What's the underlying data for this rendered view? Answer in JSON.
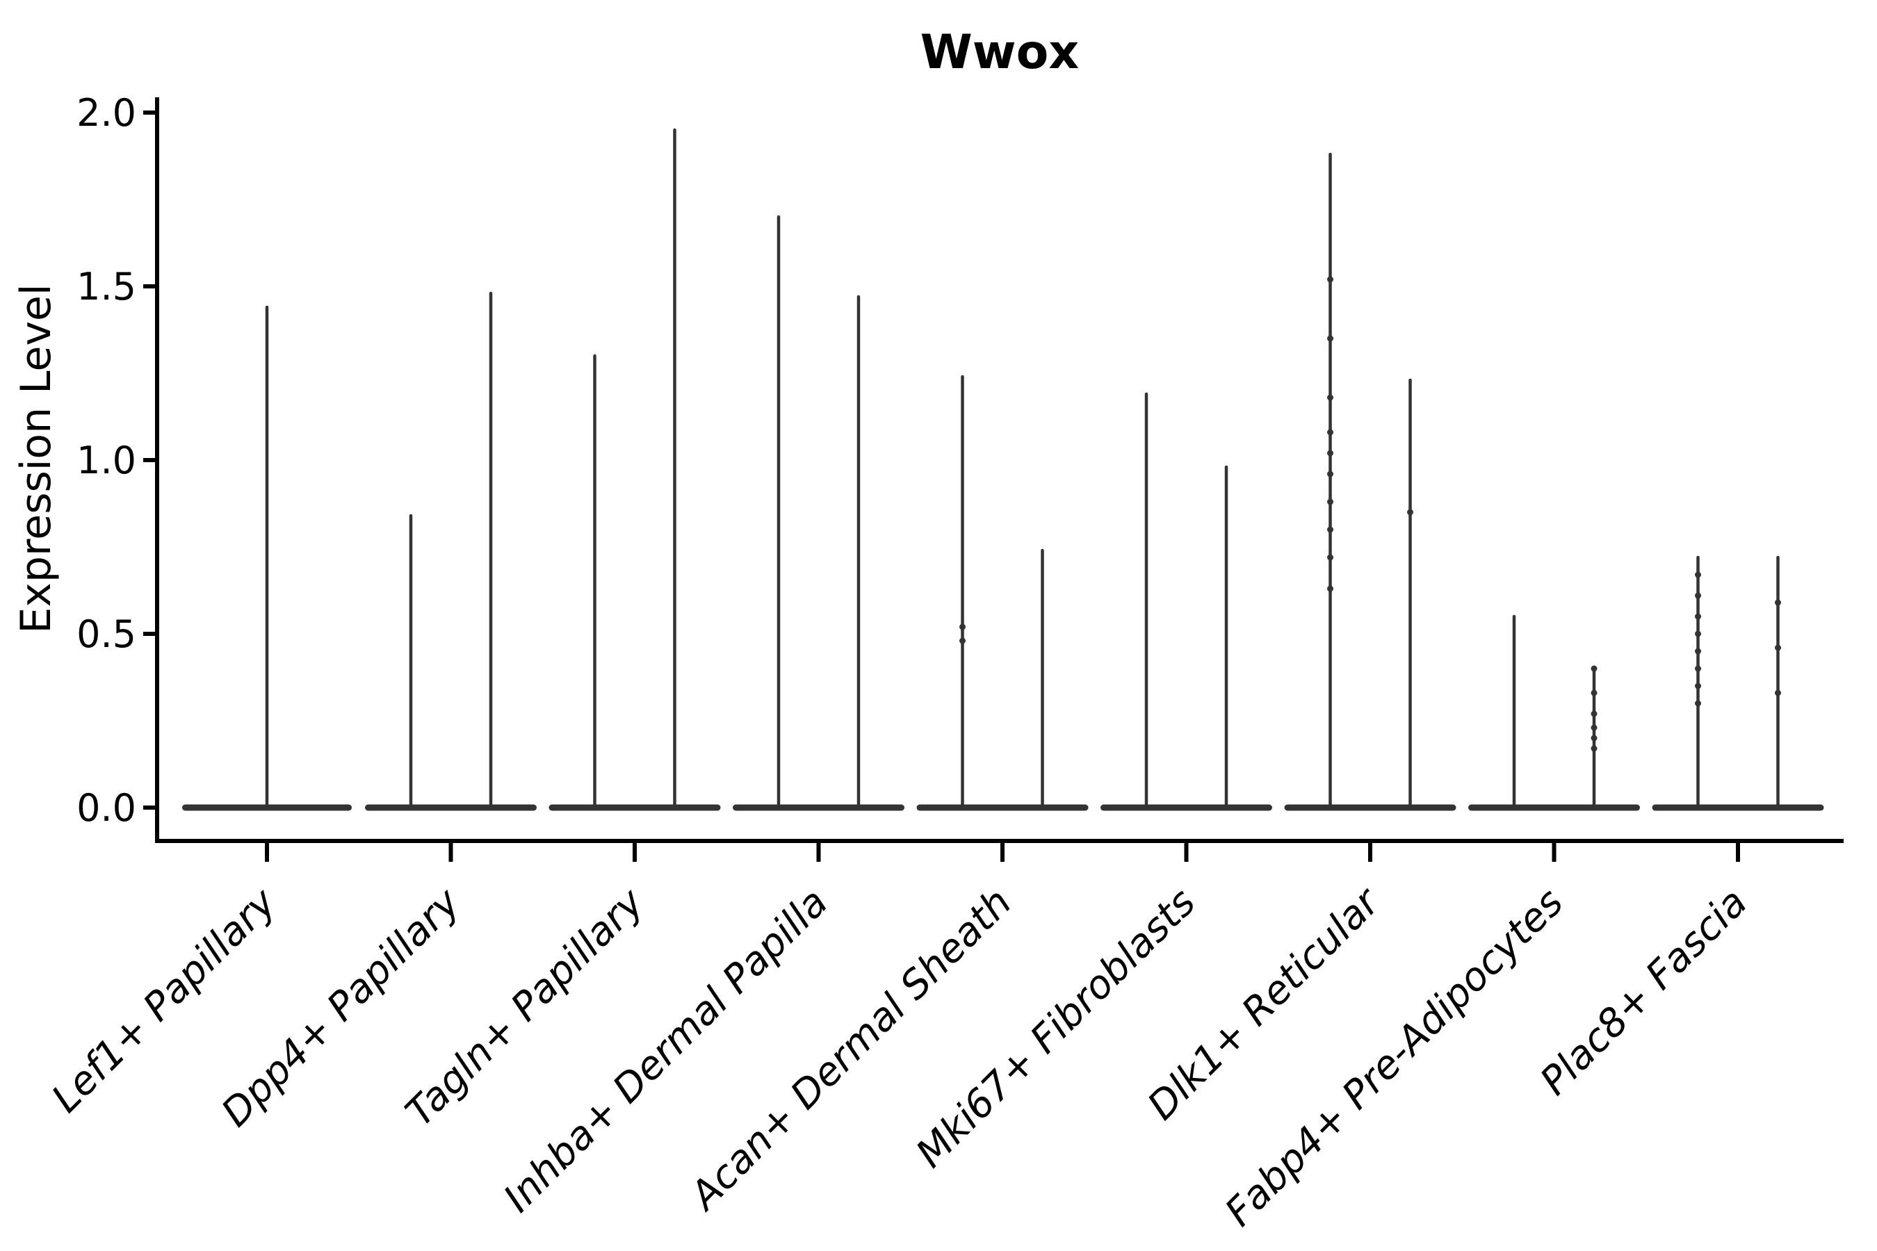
{
  "colors": {
    "violin": "#333333",
    "axis": "#000000",
    "text": "#000000",
    "background": "#ffffff"
  },
  "chart_data": {
    "type": "violin",
    "title": "Wwox",
    "ylabel": "Expression Level",
    "xlabel": "",
    "ylim": [
      0.0,
      2.0
    ],
    "ytick_labels": [
      "0.0",
      "0.5",
      "1.0",
      "1.5",
      "2.0"
    ],
    "ytick_values": [
      0.0,
      0.5,
      1.0,
      1.5,
      2.0
    ],
    "grid": false,
    "legend": "none",
    "x_tick_rotation_deg": 45,
    "x_tick_style": "italic",
    "shape_note": "each violin is a wide flat density bulge at 0 with a thin spike up to its maximum expression value",
    "categories": [
      "Lef1+ Papillary",
      "Dpp4+ Papillary",
      "Tagln+ Papillary",
      "Inhba+ Dermal Papilla",
      "Acan+ Dermal Sheath",
      "Mki67+ Fibroblasts",
      "Dlk1+ Reticular",
      "Fabp4+ Pre-Adipocytes",
      "Plac8+ Fascia"
    ],
    "violins": [
      {
        "category": "Lef1+ Papillary",
        "maxima": [
          1.44
        ],
        "dots": [
          []
        ]
      },
      {
        "category": "Dpp4+ Papillary",
        "maxima": [
          0.84,
          1.48
        ],
        "dots": [
          [],
          []
        ]
      },
      {
        "category": "Tagln+ Papillary",
        "maxima": [
          1.3,
          1.95
        ],
        "dots": [
          [],
          []
        ]
      },
      {
        "category": "Inhba+ Dermal Papilla",
        "maxima": [
          1.7,
          1.47
        ],
        "dots": [
          [],
          []
        ]
      },
      {
        "category": "Acan+ Dermal Sheath",
        "maxima": [
          1.24,
          0.74
        ],
        "dots": [
          [
            0.52,
            0.48
          ],
          []
        ]
      },
      {
        "category": "Mki67+ Fibroblasts",
        "maxima": [
          1.19,
          0.98
        ],
        "dots": [
          [],
          []
        ]
      },
      {
        "category": "Dlk1+ Reticular",
        "maxima": [
          1.88,
          1.23
        ],
        "dots": [
          [
            1.52,
            1.35,
            1.18,
            1.08,
            1.02,
            0.96,
            0.88,
            0.8,
            0.72,
            0.63
          ],
          [
            0.85
          ]
        ]
      },
      {
        "category": "Fabp4+ Pre-Adipocytes",
        "maxima": [
          0.55,
          0.4
        ],
        "dots": [
          [],
          [
            0.4,
            0.33,
            0.27,
            0.23,
            0.2,
            0.17
          ]
        ]
      },
      {
        "category": "Plac8+ Fascia",
        "maxima": [
          0.72,
          0.72
        ],
        "dots": [
          [
            0.67,
            0.61,
            0.55,
            0.5,
            0.45,
            0.4,
            0.35,
            0.3
          ],
          [
            0.59,
            0.46,
            0.33
          ]
        ]
      }
    ]
  }
}
